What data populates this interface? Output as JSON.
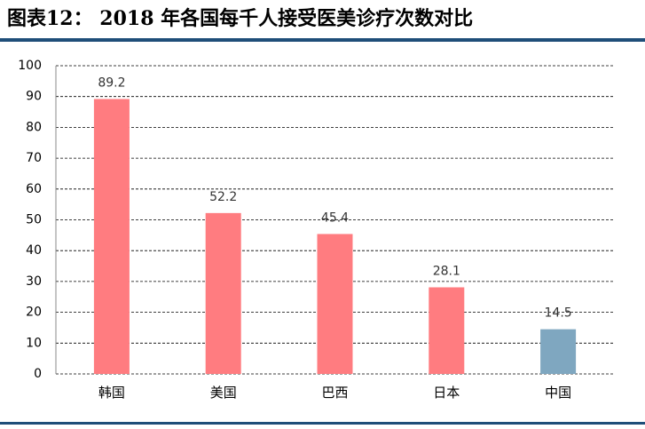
{
  "chart_data": {
    "type": "bar",
    "title": "图表12： 2018 年各国每千人接受医美诊疗次数对比",
    "categories": [
      "韩国",
      "美国",
      "巴西",
      "日本",
      "中国"
    ],
    "values": [
      89.2,
      52.2,
      45.4,
      28.1,
      14.5
    ],
    "colors": [
      "#ff7c80",
      "#ff7c80",
      "#ff7c80",
      "#ff7c80",
      "#7fa7c0"
    ],
    "ylim": [
      0,
      100
    ],
    "yticks": [
      0,
      10,
      20,
      30,
      40,
      50,
      60,
      70,
      80,
      90,
      100
    ],
    "grid": true
  }
}
